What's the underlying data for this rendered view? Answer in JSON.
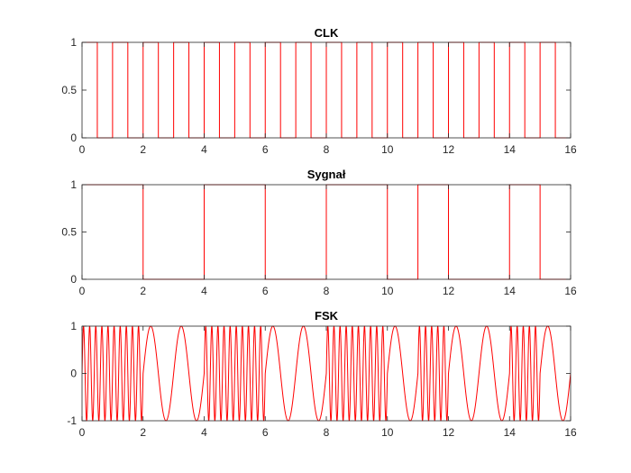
{
  "chart_data": [
    {
      "type": "line",
      "title": "CLK",
      "xlabel": "",
      "ylabel": "",
      "xlim": [
        0,
        16
      ],
      "ylim": [
        0,
        1
      ],
      "xticks": [
        0,
        2,
        4,
        6,
        8,
        10,
        12,
        14,
        16
      ],
      "yticks": [
        0,
        0.5,
        1
      ],
      "xtick_labels": [
        "0",
        "2",
        "4",
        "6",
        "8",
        "10",
        "12",
        "14",
        "16"
      ],
      "ytick_labels": [
        "0",
        "0.5",
        "1"
      ],
      "grid": false,
      "series": [
        {
          "style": "step",
          "color": "#ff0000",
          "period": 1,
          "duty": 0.5,
          "values": [
            1,
            0,
            1,
            0,
            1,
            0,
            1,
            0,
            1,
            0,
            1,
            0,
            1,
            0,
            1,
            0,
            1,
            0,
            1,
            0,
            1,
            0,
            1,
            0,
            1,
            0,
            1,
            0,
            1,
            0,
            1,
            0
          ],
          "x_start": 0,
          "x_step": 0.5
        }
      ]
    },
    {
      "type": "line",
      "title": "Sygnał",
      "xlabel": "",
      "ylabel": "",
      "xlim": [
        0,
        16
      ],
      "ylim": [
        0,
        1
      ],
      "xticks": [
        0,
        2,
        4,
        6,
        8,
        10,
        12,
        14,
        16
      ],
      "yticks": [
        0,
        0.5,
        1
      ],
      "xtick_labels": [
        "0",
        "2",
        "4",
        "6",
        "8",
        "10",
        "12",
        "14",
        "16"
      ],
      "ytick_labels": [
        "0",
        "0.5",
        "1"
      ],
      "grid": false,
      "series": [
        {
          "style": "step",
          "color": "#ff0000",
          "values": [
            1,
            1,
            0,
            0,
            1,
            1,
            0,
            0,
            1,
            1,
            0,
            1,
            0,
            0,
            1,
            0
          ],
          "x_start": 0,
          "x_step": 1
        }
      ]
    },
    {
      "type": "line",
      "title": "FSK",
      "xlabel": "",
      "ylabel": "",
      "xlim": [
        0,
        16
      ],
      "ylim": [
        -1,
        1
      ],
      "xticks": [
        0,
        2,
        4,
        6,
        8,
        10,
        12,
        14,
        16
      ],
      "yticks": [
        -1,
        0,
        1
      ],
      "xtick_labels": [
        "0",
        "2",
        "4",
        "6",
        "8",
        "10",
        "12",
        "14",
        "16"
      ],
      "ytick_labels": [
        "-1",
        "0",
        "1"
      ],
      "grid": false,
      "series": [
        {
          "style": "fsk",
          "color": "#ff0000",
          "bits": [
            1,
            1,
            0,
            0,
            1,
            1,
            0,
            0,
            1,
            1,
            0,
            1,
            0,
            0,
            1,
            0
          ],
          "freq_bit1": 5,
          "freq_bit0": 1,
          "x_start": 0,
          "x_step": 1
        }
      ]
    }
  ]
}
